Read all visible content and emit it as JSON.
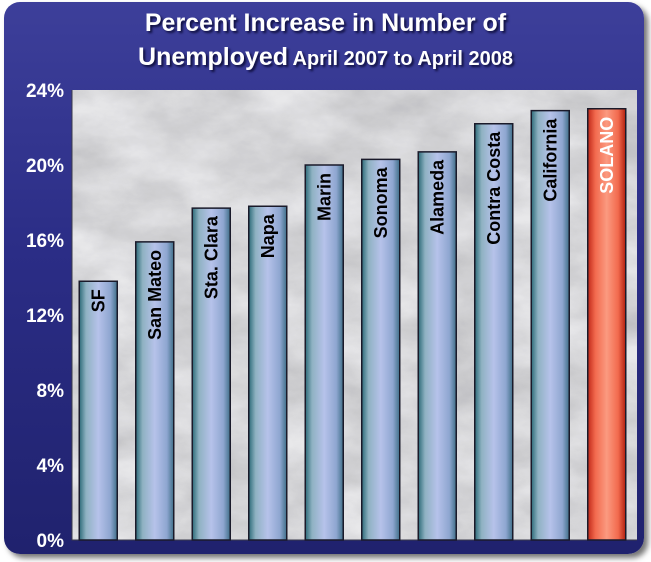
{
  "chart_data": {
    "type": "bar",
    "title_line1": "Percent Increase in Number of",
    "title_line2a": "Unemployed",
    "title_line2b": "April 2007 to April 2008",
    "xlabel": "",
    "ylabel": "",
    "ylim": [
      0,
      24
    ],
    "yticks": [
      "0%",
      "4%",
      "8%",
      "12%",
      "16%",
      "20%",
      "24%"
    ],
    "grid": false,
    "categories": [
      "SF",
      "San Mateo",
      "Sta. Clara",
      "Napa",
      "Marin",
      "Sonoma",
      "Alameda",
      "Contra Costa",
      "California",
      "SOLANO"
    ],
    "values": [
      13.8,
      15.9,
      17.7,
      17.8,
      20.0,
      20.3,
      20.7,
      22.2,
      22.9,
      23.0
    ],
    "highlight": "SOLANO",
    "colors": {
      "bar": "#a6b4e0",
      "bar_dark": "#2c6a78",
      "highlight": "#f77860",
      "highlight_dark": "#c02818",
      "frame": "#2b2d86"
    }
  }
}
